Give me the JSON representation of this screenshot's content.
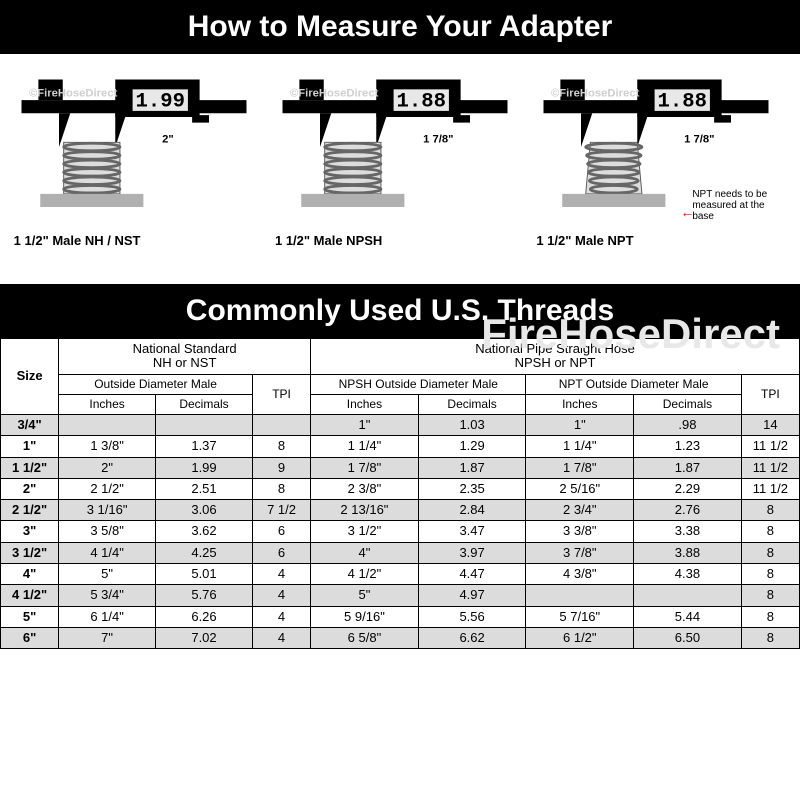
{
  "titles": {
    "top": "How to Measure Your Adapter",
    "mid": "Commonly Used U.S. Threads"
  },
  "diagrams": [
    {
      "readout": "1.99",
      "dim": "2\"",
      "caption": "1 1/2\" Male NH / NST",
      "note": "",
      "tapered": false
    },
    {
      "readout": "1.88",
      "dim": "1 7/8\"",
      "caption": "1 1/2\" Male NPSH",
      "note": "",
      "tapered": false
    },
    {
      "readout": "1.88",
      "dim": "1 7/8\"",
      "caption": "1 1/2\" Male NPT",
      "note": "NPT needs to be measured at the base",
      "tapered": true
    }
  ],
  "watermark_small": "©FireHoseDirect",
  "watermark_big": "FireHoseDirect",
  "table": {
    "group1": "National Standard\nNH or NST",
    "group2": "National Pipe Straight Hose\nNPSH or NPT",
    "sub1": "Outside Diameter Male",
    "sub2": "NPSH Outside Diameter Male",
    "sub3": "NPT Outside Diameter Male",
    "size_label": "Size",
    "tpi_label": "TPI",
    "inches_label": "Inches",
    "decimals_label": "Decimals",
    "rows": [
      {
        "size": "3/4\"",
        "nh_in": "",
        "nh_dec": "",
        "nh_tpi": "",
        "npsh_in": "1\"",
        "npsh_dec": "1.03",
        "npt_in": "1\"",
        "npt_dec": ".98",
        "np_tpi": "14",
        "shade": true
      },
      {
        "size": "1\"",
        "nh_in": "1 3/8\"",
        "nh_dec": "1.37",
        "nh_tpi": "8",
        "npsh_in": "1 1/4\"",
        "npsh_dec": "1.29",
        "npt_in": "1 1/4\"",
        "npt_dec": "1.23",
        "np_tpi": "11 1/2",
        "shade": false
      },
      {
        "size": "1 1/2\"",
        "nh_in": "2\"",
        "nh_dec": "1.99",
        "nh_tpi": "9",
        "npsh_in": "1 7/8\"",
        "npsh_dec": "1.87",
        "npt_in": "1 7/8\"",
        "npt_dec": "1.87",
        "np_tpi": "11 1/2",
        "shade": true
      },
      {
        "size": "2\"",
        "nh_in": "2 1/2\"",
        "nh_dec": "2.51",
        "nh_tpi": "8",
        "npsh_in": "2 3/8\"",
        "npsh_dec": "2.35",
        "npt_in": "2 5/16\"",
        "npt_dec": "2.29",
        "np_tpi": "11 1/2",
        "shade": false
      },
      {
        "size": "2 1/2\"",
        "nh_in": "3 1/16\"",
        "nh_dec": "3.06",
        "nh_tpi": "7 1/2",
        "npsh_in": "2 13/16\"",
        "npsh_dec": "2.84",
        "npt_in": "2 3/4\"",
        "npt_dec": "2.76",
        "np_tpi": "8",
        "shade": true
      },
      {
        "size": "3\"",
        "nh_in": "3 5/8\"",
        "nh_dec": "3.62",
        "nh_tpi": "6",
        "npsh_in": "3 1/2\"",
        "npsh_dec": "3.47",
        "npt_in": "3 3/8\"",
        "npt_dec": "3.38",
        "np_tpi": "8",
        "shade": false
      },
      {
        "size": "3 1/2\"",
        "nh_in": "4 1/4\"",
        "nh_dec": "4.25",
        "nh_tpi": "6",
        "npsh_in": "4\"",
        "npsh_dec": "3.97",
        "npt_in": "3 7/8\"",
        "npt_dec": "3.88",
        "np_tpi": "8",
        "shade": true
      },
      {
        "size": "4\"",
        "nh_in": "5\"",
        "nh_dec": "5.01",
        "nh_tpi": "4",
        "npsh_in": "4 1/2\"",
        "npsh_dec": "4.47",
        "npt_in": "4 3/8\"",
        "npt_dec": "4.38",
        "np_tpi": "8",
        "shade": false
      },
      {
        "size": "4 1/2\"",
        "nh_in": "5 3/4\"",
        "nh_dec": "5.76",
        "nh_tpi": "4",
        "npsh_in": "5\"",
        "npsh_dec": "4.97",
        "npt_in": "",
        "npt_dec": "",
        "np_tpi": "8",
        "shade": true
      },
      {
        "size": "5\"",
        "nh_in": "6 1/4\"",
        "nh_dec": "6.26",
        "nh_tpi": "4",
        "npsh_in": "5 9/16\"",
        "npsh_dec": "5.56",
        "npt_in": "5 7/16\"",
        "npt_dec": "5.44",
        "np_tpi": "8",
        "shade": false
      },
      {
        "size": "6\"",
        "nh_in": "7\"",
        "nh_dec": "7.02",
        "nh_tpi": "4",
        "npsh_in": "6 5/8\"",
        "npsh_dec": "6.62",
        "npt_in": "6 1/2\"",
        "npt_dec": "6.50",
        "np_tpi": "8",
        "shade": true
      }
    ]
  },
  "colors": {
    "black": "#000000",
    "white": "#ffffff",
    "shade": "#dcdcdc",
    "base_gray": "#b0b0b0",
    "thread_gray": "#808080",
    "watermark": "#e8e8e8",
    "red": "#ff0000"
  }
}
